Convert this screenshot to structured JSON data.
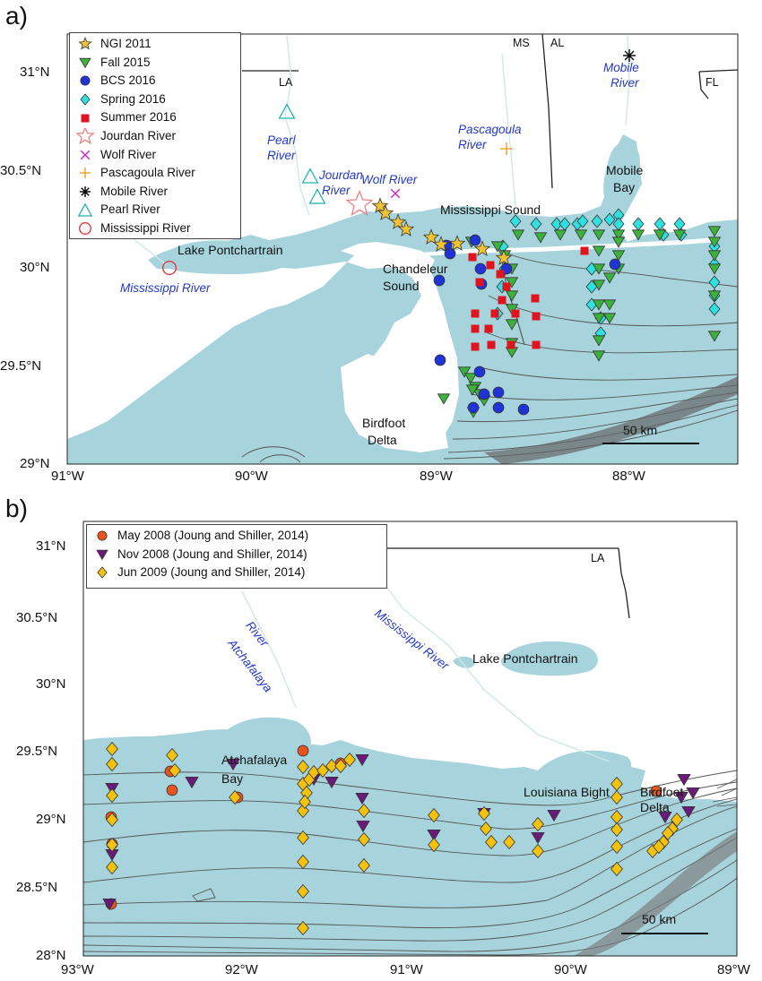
{
  "panel_a": {
    "letter": "a)",
    "legend": [
      {
        "label": "NGI 2011",
        "symbol": "star-filled",
        "color": "#f1c232"
      },
      {
        "label": "Fall 2015",
        "symbol": "triangle-down",
        "color": "#3cb23c"
      },
      {
        "label": "BCS 2016",
        "symbol": "circle-filled",
        "color": "#1f33d6"
      },
      {
        "label": "Spring 2016",
        "symbol": "diamond-filled",
        "color": "#2ee0e0"
      },
      {
        "label": "Summer 2016",
        "symbol": "square-filled",
        "color": "#e0141e"
      },
      {
        "label": "Jourdan River",
        "symbol": "star-open",
        "color": "#f08080"
      },
      {
        "label": "Wolf River",
        "symbol": "x",
        "color": "#d020d0"
      },
      {
        "label": "Pascagoula River",
        "symbol": "plus",
        "color": "#f0a020"
      },
      {
        "label": "Mobile River",
        "symbol": "asterisk",
        "color": "#000000"
      },
      {
        "label": "Pearl River",
        "symbol": "triangle-open",
        "color": "#20b2aa"
      },
      {
        "label": "Mississippi River",
        "symbol": "circle-open",
        "color": "#e03030"
      }
    ],
    "x_ticks": [
      "91°W",
      "90°W",
      "89°W",
      "88°W"
    ],
    "y_ticks": [
      "31°N",
      "30.5°N",
      "30°N",
      "29.5°N",
      "29°N"
    ],
    "state_labels": [
      "MS",
      "AL",
      "LA",
      "FL"
    ],
    "place_labels": [
      "Lake Pontchartrain",
      "Mississippi Sound",
      "Mobile",
      "Bay",
      "Chandeleur",
      "Sound",
      "Birdfoot",
      "Delta"
    ],
    "river_labels": [
      "Pearl",
      "River",
      "Jourdan",
      "River",
      "Wolf River",
      "Pascagoula",
      "River",
      "Mobile",
      "River",
      "Mississippi River"
    ],
    "scale_label": "50 km"
  },
  "panel_b": {
    "letter": "b)",
    "legend": [
      {
        "label": "May 2008 (Joung and Shiller, 2014)",
        "symbol": "circle-filled",
        "color": "#e8541c"
      },
      {
        "label": "Nov 2008 (Joung and Shiller, 2014)",
        "symbol": "triangle-down",
        "color": "#6a1b7a"
      },
      {
        "label": "Jun 2009 (Joung and Shiller, 2014)",
        "symbol": "diamond-filled",
        "color": "#f4c20d"
      }
    ],
    "x_ticks": [
      "93°W",
      "92°W",
      "91°W",
      "90°W",
      "89°W"
    ],
    "y_ticks": [
      "31°N",
      "30.5°N",
      "30°N",
      "29.5°N",
      "29°N",
      "28.5°N",
      "28°N"
    ],
    "state_labels": [
      "LA"
    ],
    "place_labels": [
      "Lake Pontchartrain",
      "Atchafalaya",
      "Bay",
      "Louisiana Bight",
      "Birdfoot",
      "Delta"
    ],
    "river_labels": [
      "Atchafalaya",
      "River",
      "Mississippi River"
    ],
    "scale_label": "50 km"
  },
  "colors": {
    "water": "#a7d4dc",
    "land": "#ffffff",
    "river_text": "#2338c9",
    "contour": "#555555",
    "state_line": "#222222"
  }
}
